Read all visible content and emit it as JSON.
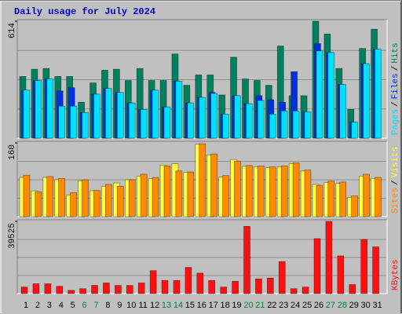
{
  "title": "Daily usage for July 2024",
  "title_color": "#0000c0",
  "chart_data": [
    {
      "type": "bar",
      "ylim": [
        0,
        614
      ],
      "yticks": [
        614
      ],
      "legend_separator": "/",
      "series": [
        {
          "name": "Hits",
          "color": "#00805c",
          "values": [
            324,
            362,
            366,
            324,
            324,
            189,
            290,
            357,
            362,
            303,
            366,
            303,
            303,
            442,
            278,
            332,
            332,
            227,
            425,
            311,
            303,
            278,
            484,
            223,
            223,
            614,
            547,
            366,
            151,
            471,
            572
          ]
        },
        {
          "name": "Files",
          "color": "#0030e0",
          "values": [
            252,
            303,
            311,
            248,
            265,
            135,
            231,
            261,
            240,
            185,
            151,
            252,
            164,
            299,
            185,
            214,
            240,
            126,
            223,
            181,
            223,
            202,
            189,
            349,
            139,
            496,
            450,
            282,
            84,
            391,
            467
          ]
        },
        {
          "name": "Pages",
          "color": "#00e0ff",
          "values": [
            252,
            303,
            311,
            168,
            168,
            135,
            231,
            261,
            240,
            185,
            151,
            252,
            164,
            299,
            185,
            214,
            235,
            126,
            223,
            181,
            198,
            126,
            143,
            143,
            139,
            458,
            450,
            282,
            84,
            391,
            467
          ]
        }
      ]
    },
    {
      "type": "bar",
      "ylim": [
        0,
        160
      ],
      "yticks": [
        160
      ],
      "legend_separator": "/",
      "series": [
        {
          "name": "Visits",
          "color": "#ffff40",
          "values": [
            85,
            56,
            85,
            80,
            47,
            78,
            56,
            66,
            73,
            80,
            88,
            82,
            112,
            115,
            96,
            157,
            134,
            86,
            124,
            109,
            108,
            106,
            108,
            115,
            99,
            70,
            74,
            72,
            42,
            88,
            83
          ]
        },
        {
          "name": "Sites",
          "color": "#ff8c00",
          "values": [
            90,
            54,
            87,
            83,
            52,
            80,
            57,
            70,
            66,
            80,
            92,
            85,
            110,
            99,
            97,
            158,
            136,
            89,
            120,
            111,
            110,
            108,
            110,
            117,
            101,
            68,
            77,
            75,
            45,
            92,
            85
          ]
        }
      ]
    },
    {
      "type": "bar",
      "ylim": [
        0,
        39525
      ],
      "yticks": [
        39525
      ],
      "categories": [
        "1",
        "2",
        "3",
        "4",
        "5",
        "6",
        "7",
        "8",
        "9",
        "10",
        "11",
        "12",
        "13",
        "14",
        "15",
        "16",
        "17",
        "18",
        "19",
        "20",
        "21",
        "22",
        "23",
        "24",
        "25",
        "26",
        "27",
        "28",
        "29",
        "30",
        "31"
      ],
      "category_colors": [
        "#000",
        "#000",
        "#000",
        "#000",
        "#000",
        "#008040",
        "#008040",
        "#000",
        "#000",
        "#000",
        "#000",
        "#000",
        "#008040",
        "#008040",
        "#000",
        "#000",
        "#000",
        "#000",
        "#000",
        "#008040",
        "#008040",
        "#000",
        "#000",
        "#000",
        "#000",
        "#000",
        "#008040",
        "#008040",
        "#000",
        "#000",
        "#000"
      ],
      "series": [
        {
          "name": "KBytes",
          "color": "#ff1010",
          "values": [
            3592,
            5388,
            5388,
            4041,
            1796,
            2694,
            4490,
            5837,
            4490,
            4490,
            5837,
            12572,
            7184,
            7184,
            14368,
            11225,
            7184,
            3592,
            6735,
            36818,
            8082,
            8531,
            17511,
            2694,
            3592,
            30083,
            39525,
            20654,
            4939,
            29634,
            25593
          ]
        }
      ]
    }
  ]
}
